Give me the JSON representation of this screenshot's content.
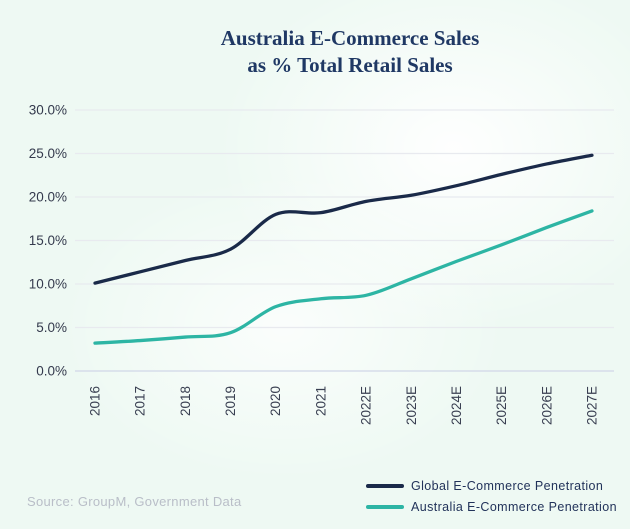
{
  "title": {
    "line1": "Australia E-Commerce Sales",
    "line2": "as % Total Retail Sales"
  },
  "source": "Source: GroupM, Government Data",
  "colors": {
    "background_tint": "#eef9f3",
    "title": "#1f3864",
    "gridline": "#e8eaef",
    "zero_line": "#d6dcea",
    "axis_label": "#343a4d",
    "source_text": "#b9bec8"
  },
  "chart_data": {
    "type": "line",
    "title": "Australia E-Commerce Sales as % Total Retail Sales",
    "categories": [
      "2016",
      "2017",
      "2018",
      "2019",
      "2020",
      "2021",
      "2022E",
      "2023E",
      "2024E",
      "2025E",
      "2026E",
      "2027E"
    ],
    "series": [
      {
        "name": "Global E-Commerce Penetration",
        "color": "#1a2a49",
        "values": [
          10.1,
          11.4,
          12.7,
          14.0,
          18.0,
          18.2,
          19.5,
          20.2,
          21.3,
          22.6,
          23.8,
          24.8
        ]
      },
      {
        "name": "Australia E-Commerce Penetration",
        "color": "#2db5a4",
        "values": [
          3.2,
          3.5,
          3.9,
          4.4,
          7.4,
          8.3,
          8.7,
          10.6,
          12.6,
          14.5,
          16.5,
          18.4
        ]
      }
    ],
    "xlabel": "",
    "ylabel": "",
    "ylim": [
      0,
      30
    ],
    "y_ticks": [
      {
        "value": 0,
        "label": "0.0%"
      },
      {
        "value": 5,
        "label": "5.0%"
      },
      {
        "value": 10,
        "label": "10.0%"
      },
      {
        "value": 15,
        "label": "15.0%"
      },
      {
        "value": 20,
        "label": "20.0%"
      },
      {
        "value": 25,
        "label": "25.0%"
      },
      {
        "value": 30,
        "label": "30.0%"
      }
    ],
    "grid": true,
    "x_label_rotation_deg": 90,
    "legend_position": "bottom-right",
    "line_smoothing": true
  }
}
